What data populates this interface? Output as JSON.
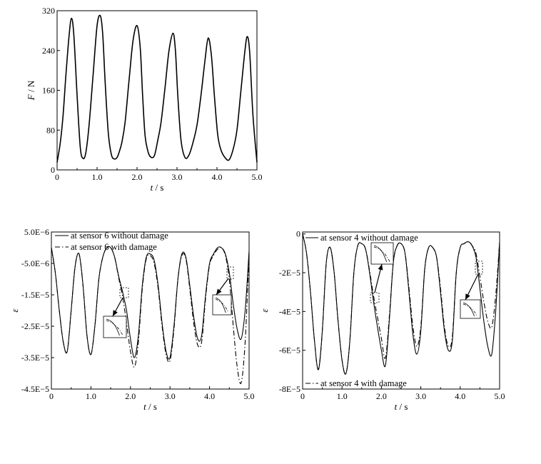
{
  "chart_data": [
    {
      "type": "line",
      "xlabel": "t / s",
      "ylabel": "F / N",
      "xlim": [
        0,
        5.0
      ],
      "ylim": [
        0,
        320
      ],
      "xticks": [
        "0",
        "1.0",
        "2.0",
        "3.0",
        "4.0",
        "5.0"
      ],
      "yticks": [
        "0",
        "80",
        "160",
        "240",
        "320"
      ],
      "grid": false,
      "series": [
        {
          "style": "solid",
          "x": [
            0,
            0.08,
            0.15,
            0.22,
            0.3,
            0.36,
            0.42,
            0.5,
            0.58,
            0.65,
            0.72,
            0.8,
            0.9,
            1.0,
            1.08,
            1.14,
            1.2,
            1.28,
            1.36,
            1.44,
            1.5,
            1.55,
            1.62,
            1.7,
            1.8,
            1.9,
            2.0,
            2.08,
            2.14,
            2.2,
            2.28,
            2.36,
            2.44,
            2.52,
            2.6,
            2.7,
            2.8,
            2.9,
            2.96,
            3.02,
            3.1,
            3.2,
            3.3,
            3.4,
            3.5,
            3.6,
            3.7,
            3.78,
            3.86,
            3.94,
            4.02,
            4.1,
            4.2,
            4.3,
            4.4,
            4.5,
            4.6,
            4.7,
            4.76,
            4.82,
            4.9,
            5.0
          ],
          "y": [
            15,
            55,
            110,
            190,
            270,
            305,
            270,
            150,
            45,
            23,
            35,
            90,
            190,
            290,
            310,
            275,
            180,
            75,
            30,
            22,
            25,
            35,
            55,
            95,
            180,
            260,
            290,
            245,
            150,
            70,
            35,
            25,
            30,
            60,
            95,
            165,
            240,
            275,
            240,
            150,
            60,
            25,
            30,
            55,
            90,
            150,
            220,
            265,
            230,
            145,
            70,
            40,
            25,
            20,
            40,
            80,
            160,
            240,
            268,
            235,
            110,
            15
          ]
        }
      ]
    },
    {
      "type": "line",
      "xlabel": "t / s",
      "ylabel": "ε",
      "xlim": [
        0,
        5.0
      ],
      "ylim": [
        -4.5e-05,
        5e-06
      ],
      "xticks": [
        "0",
        "1.0",
        "2.0",
        "3.0",
        "4.0",
        "5.0"
      ],
      "yticks": [
        "5.0E−6",
        "-5.0E−6",
        "-1.5E−5",
        "-2.5E−5",
        "-3.5E−5",
        "-4.5E−5"
      ],
      "grid": false,
      "legend_position": "top-left",
      "series": [
        {
          "name": "at sensor 6 without damage",
          "style": "solid",
          "x": [
            0,
            0.1,
            0.2,
            0.3,
            0.4,
            0.5,
            0.6,
            0.7,
            0.8,
            0.9,
            1.0,
            1.1,
            1.2,
            1.3,
            1.4,
            1.5,
            1.6,
            1.7,
            1.8,
            1.9,
            2.0,
            2.1,
            2.2,
            2.3,
            2.4,
            2.5,
            2.6,
            2.7,
            2.8,
            2.9,
            3.0,
            3.1,
            3.2,
            3.3,
            3.4,
            3.5,
            3.6,
            3.7,
            3.8,
            3.9,
            4.0,
            4.1,
            4.2,
            4.3,
            4.4,
            4.5,
            4.6,
            4.7,
            4.8,
            4.9,
            5.0
          ],
          "y": [
            0,
            -8e-06,
            -2e-05,
            -3e-05,
            -3.3e-05,
            -2e-05,
            -6e-06,
            -2e-06,
            -1.2e-05,
            -2.8e-05,
            -3.4e-05,
            -2.5e-05,
            -1e-05,
            -3e-06,
            0,
            0,
            -3e-06,
            -9e-06,
            -1.4e-05,
            -2e-05,
            -2.9e-05,
            -3.5e-05,
            -2.8e-05,
            -1.2e-05,
            -3e-06,
            -2e-06,
            -4e-06,
            -1.2e-05,
            -2.4e-05,
            -3.3e-05,
            -3.5e-05,
            -2.5e-05,
            -1e-05,
            -2e-06,
            -3e-06,
            -1.2e-05,
            -2.2e-05,
            -2.9e-05,
            -2.8e-05,
            -1.5e-05,
            -5e-06,
            -2e-06,
            0,
            0,
            -2e-06,
            -8e-06,
            -1.8e-05,
            -2.6e-05,
            -2.9e-05,
            -2e-05,
            -1e-06
          ]
        },
        {
          "name": "at sensor 6 with damage",
          "style": "dash-dot",
          "x": [
            0,
            0.1,
            0.2,
            0.3,
            0.4,
            0.5,
            0.6,
            0.7,
            0.8,
            0.9,
            1.0,
            1.1,
            1.2,
            1.3,
            1.4,
            1.5,
            1.6,
            1.7,
            1.8,
            1.9,
            2.0,
            2.1,
            2.2,
            2.3,
            2.4,
            2.5,
            2.6,
            2.7,
            2.8,
            2.9,
            3.0,
            3.1,
            3.2,
            3.3,
            3.4,
            3.5,
            3.6,
            3.7,
            3.8,
            3.9,
            4.0,
            4.1,
            4.2,
            4.3,
            4.4,
            4.5,
            4.6,
            4.7,
            4.8,
            4.9,
            5.0
          ],
          "y": [
            0,
            -8e-06,
            -2e-05,
            -3e-05,
            -3.3e-05,
            -2e-05,
            -6e-06,
            -2e-06,
            -1.2e-05,
            -2.8e-05,
            -3.4e-05,
            -2.5e-05,
            -1e-05,
            -3e-06,
            0,
            0,
            -3e-06,
            -9.5e-06,
            -1.55e-05,
            -2.4e-05,
            -3.3e-05,
            -3.8e-05,
            -3e-05,
            -1.3e-05,
            -3.5e-06,
            -2.5e-06,
            -5e-06,
            -1.3e-05,
            -2.5e-05,
            -3.4e-05,
            -3.6e-05,
            -2.6e-05,
            -1e-05,
            -2.5e-06,
            -3.5e-06,
            -1.3e-05,
            -2.4e-05,
            -3.1e-05,
            -3e-05,
            -1.6e-05,
            -5.5e-06,
            -2.5e-06,
            -5e-07,
            0,
            -2.5e-06,
            -1e-05,
            -2.5e-05,
            -3.8e-05,
            -4.3e-05,
            -3e-05,
            -2e-06
          ]
        }
      ]
    },
    {
      "type": "line",
      "xlabel": "t / s",
      "ylabel": "ε",
      "xlim": [
        0,
        5.0
      ],
      "ylim": [
        -8e-05,
        1e-06
      ],
      "xticks": [
        "0",
        "1.0",
        "2.0",
        "3.0",
        "4.0",
        "5.0"
      ],
      "yticks": [
        "0",
        "-2E−5",
        "-4E−5",
        "-6E−5",
        "-8E−5"
      ],
      "grid": false,
      "series": [
        {
          "name": "at sensor 4 without damage",
          "style": "solid",
          "x": [
            0,
            0.1,
            0.2,
            0.3,
            0.4,
            0.5,
            0.6,
            0.7,
            0.8,
            0.9,
            1.0,
            1.1,
            1.2,
            1.3,
            1.4,
            1.5,
            1.6,
            1.7,
            1.8,
            1.9,
            2.0,
            2.1,
            2.2,
            2.3,
            2.4,
            2.5,
            2.6,
            2.7,
            2.8,
            2.9,
            3.0,
            3.1,
            3.2,
            3.3,
            3.4,
            3.5,
            3.6,
            3.7,
            3.8,
            3.9,
            4.0,
            4.1,
            4.2,
            4.3,
            4.4,
            4.5,
            4.6,
            4.7,
            4.8,
            4.9,
            5.0
          ],
          "y": [
            0,
            -1e-05,
            -3e-05,
            -5.5e-05,
            -7e-05,
            -5e-05,
            -1.5e-05,
            -7e-06,
            -2e-05,
            -4.5e-05,
            -6.5e-05,
            -7.2e-05,
            -5.5e-05,
            -2e-05,
            -6e-06,
            -5e-06,
            -8e-06,
            -2e-05,
            -3.5e-05,
            -4.8e-05,
            -6e-05,
            -6.8e-05,
            -4.5e-05,
            -1.5e-05,
            -6e-06,
            -5e-06,
            -1e-05,
            -3e-05,
            -5.2e-05,
            -6.2e-05,
            -5e-05,
            -1.8e-05,
            -7e-06,
            -7e-06,
            -1.2e-05,
            -3e-05,
            -5e-05,
            -6e-05,
            -5.5e-05,
            -2e-05,
            -7e-06,
            -5e-06,
            -4e-06,
            -6e-06,
            -1.2e-05,
            -2.8e-05,
            -4.5e-05,
            -5.8e-05,
            -6.2e-05,
            -4e-05,
            -4e-06
          ]
        },
        {
          "name": "at sensor 4 with damage",
          "style": "dash-dot",
          "x": [
            0,
            0.1,
            0.2,
            0.3,
            0.4,
            0.5,
            0.6,
            0.7,
            0.8,
            0.9,
            1.0,
            1.1,
            1.2,
            1.3,
            1.4,
            1.5,
            1.6,
            1.7,
            1.8,
            1.9,
            2.0,
            2.1,
            2.2,
            2.3,
            2.4,
            2.5,
            2.6,
            2.7,
            2.8,
            2.9,
            3.0,
            3.1,
            3.2,
            3.3,
            3.4,
            3.5,
            3.6,
            3.7,
            3.8,
            3.9,
            4.0,
            4.1,
            4.2,
            4.3,
            4.4,
            4.5,
            4.6,
            4.7,
            4.8,
            4.9,
            5.0
          ],
          "y": [
            0,
            -1e-05,
            -3e-05,
            -5.5e-05,
            -7e-05,
            -5e-05,
            -1.5e-05,
            -7e-06,
            -2e-05,
            -4.5e-05,
            -6.5e-05,
            -7.2e-05,
            -5.5e-05,
            -2e-05,
            -6e-06,
            -5e-06,
            -8e-06,
            -1.9e-05,
            -3.2e-05,
            -4.3e-05,
            -5.4e-05,
            -6.4e-05,
            -4.3e-05,
            -1.5e-05,
            -6e-06,
            -5e-06,
            -1e-05,
            -2.8e-05,
            -4.8e-05,
            -5.8e-05,
            -4.8e-05,
            -1.8e-05,
            -7e-06,
            -7e-06,
            -1.2e-05,
            -2.8e-05,
            -4.8e-05,
            -5.8e-05,
            -5.3e-05,
            -2e-05,
            -7e-06,
            -5e-06,
            -4e-06,
            -6e-06,
            -1e-05,
            -2.2e-05,
            -3.5e-05,
            -4.5e-05,
            -4.8e-05,
            -3.2e-05,
            -4e-06
          ]
        }
      ]
    }
  ]
}
